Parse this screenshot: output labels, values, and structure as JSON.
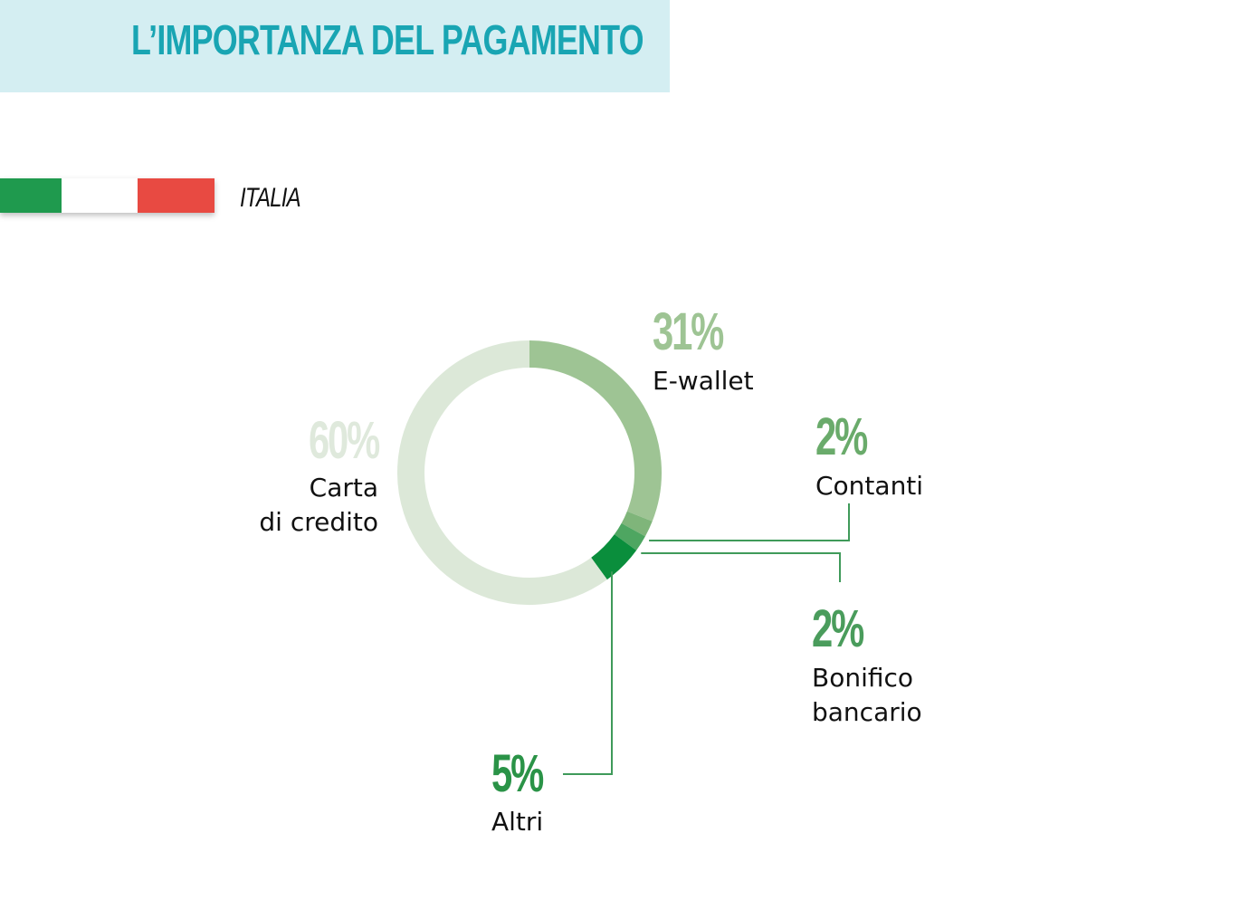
{
  "header": {
    "title": "L’IMPORTANZA DEL PAGAMENTO"
  },
  "country": {
    "label": "ITALIA",
    "flag_colors": [
      "#1f9a4e",
      "#ffffff",
      "#e84a42"
    ]
  },
  "colors": {
    "banner_bg": "#d4eef2",
    "title": "#19a5b3",
    "callout_line": "#3f9a5a"
  },
  "chart_data": {
    "type": "pie",
    "variant": "donut",
    "start": "top",
    "direction": "clockwise",
    "slice_order": [
      "E-wallet",
      "Contanti",
      "Bonifico bancario",
      "Altri",
      "Carta di credito"
    ],
    "slices": [
      {
        "id": "ewallet",
        "value": 31,
        "pct_label": "31%",
        "name_lines": [
          "E-wallet"
        ],
        "color": "#9ec494",
        "label_color": "#9ec494"
      },
      {
        "id": "contanti",
        "value": 2,
        "pct_label": "2%",
        "name_lines": [
          "Contanti"
        ],
        "color": "#7fb57a",
        "label_color": "#6aab6b"
      },
      {
        "id": "bonifico",
        "value": 2,
        "pct_label": "2%",
        "name_lines": [
          "Bonifico",
          "bancario"
        ],
        "color": "#4ea661",
        "label_color": "#4a9c5c"
      },
      {
        "id": "altri",
        "value": 5,
        "pct_label": "5%",
        "name_lines": [
          "Altri"
        ],
        "color": "#0a8e3c",
        "label_color": "#2a9347"
      },
      {
        "id": "carta",
        "value": 60,
        "pct_label": "60%",
        "name_lines": [
          "Carta",
          "di credito"
        ],
        "color": "#dce8d8",
        "label_color": "#dfe9dc"
      }
    ]
  }
}
